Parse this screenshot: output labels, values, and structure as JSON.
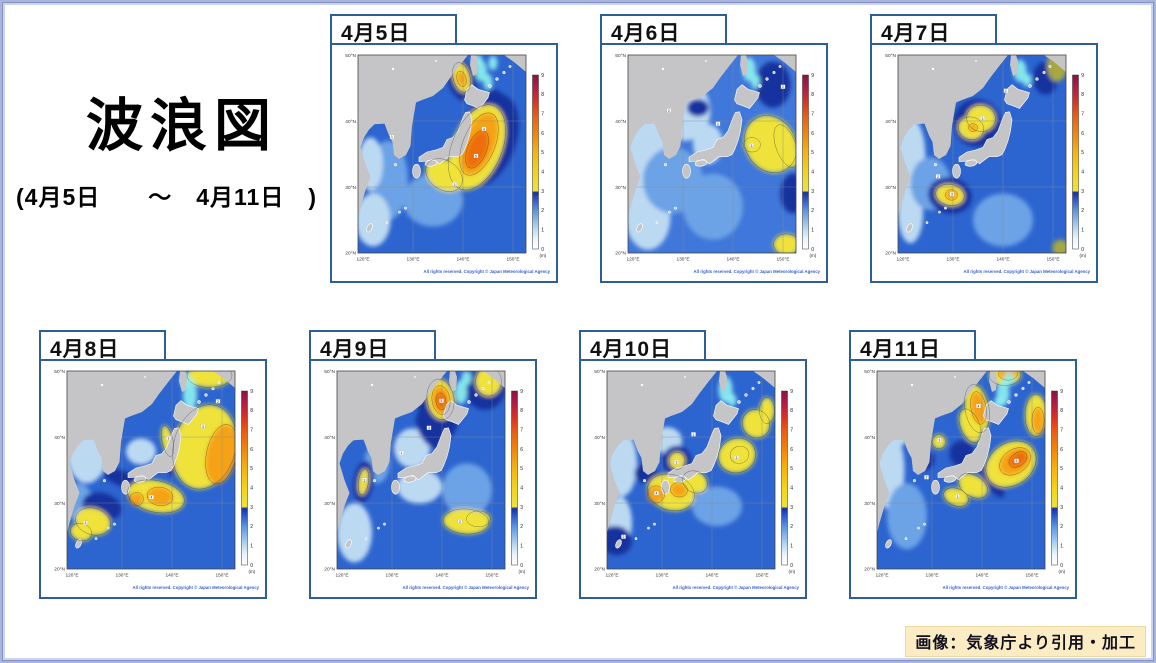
{
  "slide": {
    "title": "波浪図",
    "subtitle": "(4月5日　　～　4月11日　)",
    "attribution": "画像：気象庁より引用・加工"
  },
  "map_common": {
    "lat_labels": [
      "50°N",
      "40°N",
      "30°N",
      "20°N"
    ],
    "lon_labels": [
      "120°E",
      "130°E",
      "140°E",
      "150°E"
    ],
    "colorbar": {
      "ticks": [
        9,
        8,
        7,
        6,
        5,
        4,
        3,
        2,
        1,
        0
      ],
      "unit": "(m)"
    },
    "copyright": "All rights reserved. Copyright © Japan Meteorological Agency",
    "palette": {
      "sea": "#2d65d0",
      "sea_light": "#4077da",
      "land": "#c5c5c7",
      "border": "#2d5e98",
      "p": "#bcd9f2",
      "w": "#eef6fc",
      "m": "#6ca2e6",
      "db": "#16309e",
      "y": "#eee23a",
      "o": "#f6a217",
      "d": "#ee6d0c",
      "r": "#d83028",
      "c": "#8ef2f0",
      "g": "#a8a93c"
    },
    "colorbar_stops": [
      [
        0,
        "#ffffff"
      ],
      [
        6,
        "#eaf4fc"
      ],
      [
        11,
        "#bcdcf2"
      ],
      [
        22,
        "#5b96e0"
      ],
      [
        29,
        "#2a52c8"
      ],
      [
        32.5,
        "#16309e"
      ],
      [
        33.5,
        "#ede23e"
      ],
      [
        44,
        "#f2d41c"
      ],
      [
        55,
        "#f5b50f"
      ],
      [
        66,
        "#f1870c"
      ],
      [
        77,
        "#e85c12"
      ],
      [
        85,
        "#d93025"
      ],
      [
        93,
        "#b01c48"
      ],
      [
        100,
        "#8c1240"
      ]
    ]
  },
  "panels": [
    {
      "date": "4月5日",
      "sea": "#2d65d0",
      "blobs": [
        [
          125,
          31,
          4,
          6,
          0,
          "m"
        ],
        [
          122,
          25,
          3.5,
          4,
          0,
          "p"
        ],
        [
          121.5,
          33.5,
          2.5,
          4,
          0,
          "p"
        ],
        [
          134,
          28,
          6,
          4,
          0,
          "m"
        ],
        [
          144.5,
          37,
          6,
          7.5,
          22,
          "db"
        ],
        [
          146,
          42.8,
          2.4,
          2,
          0,
          "db"
        ],
        [
          142.8,
          36,
          5,
          6.8,
          22,
          "y"
        ],
        [
          136.2,
          31.8,
          4,
          2.2,
          35,
          "y"
        ],
        [
          143.2,
          36.5,
          3.2,
          5,
          22,
          "o"
        ],
        [
          142.8,
          35.7,
          1.9,
          3,
          22,
          "d"
        ],
        [
          139.8,
          46.2,
          2.8,
          3.2,
          -15,
          "db"
        ],
        [
          139.7,
          46.6,
          1.7,
          2.3,
          -15,
          "y"
        ],
        [
          139.7,
          46.4,
          0.9,
          1.2,
          -15,
          "o"
        ],
        [
          143.6,
          47.6,
          1.2,
          1.6,
          0,
          "c"
        ],
        [
          145,
          45.9,
          0.9,
          1.2,
          0,
          "c"
        ],
        [
          142.9,
          49.2,
          1,
          0.9,
          0,
          "c"
        ],
        [
          146,
          48.8,
          0.9,
          1.1,
          0,
          "c"
        ]
      ],
      "contour_labels": [
        [
          144.2,
          38.8,
          "4"
        ],
        [
          142.6,
          34.7,
          "5"
        ],
        [
          138.3,
          30.4,
          "3"
        ],
        [
          125.8,
          37.6,
          "1"
        ]
      ]
    },
    {
      "date": "4月6日",
      "sea": "#4077da",
      "blobs": [
        [
          123.5,
          34,
          5.5,
          8,
          0,
          "p"
        ],
        [
          123,
          25.5,
          4.5,
          5,
          0,
          "p"
        ],
        [
          130.5,
          41.5,
          5,
          4.5,
          0,
          "p"
        ],
        [
          135,
          36.5,
          3,
          3,
          0,
          "p"
        ],
        [
          128,
          31,
          6,
          5,
          0,
          "m"
        ],
        [
          136,
          27,
          6,
          5,
          0,
          "m"
        ],
        [
          133,
          42,
          2.2,
          1.3,
          0,
          "db"
        ],
        [
          148,
          45.5,
          3.5,
          3.5,
          0,
          "db"
        ],
        [
          152,
          29,
          2.5,
          3,
          0,
          "db"
        ],
        [
          147.5,
          36.5,
          5,
          4.5,
          -30,
          "y"
        ],
        [
          143.8,
          36.4,
          1.7,
          1.1,
          0,
          "y"
        ],
        [
          150.6,
          36.2,
          2,
          3.4,
          -20,
          "y"
        ],
        [
          150.7,
          21.3,
          2.6,
          1.6,
          0,
          "y"
        ],
        [
          143.2,
          47.8,
          1.3,
          1.8,
          0,
          "c"
        ],
        [
          144.5,
          46,
          0.9,
          1.1,
          0,
          "c"
        ]
      ],
      "contour_labels": [
        [
          127.2,
          41.6,
          "2"
        ],
        [
          137,
          39.6,
          "1"
        ],
        [
          143.7,
          36.3,
          "3"
        ],
        [
          150,
          45.2,
          "2"
        ]
      ]
    },
    {
      "date": "4月7日",
      "sea": "#2d65d0",
      "blobs": [
        [
          121.5,
          34.5,
          3,
          6,
          0,
          "p"
        ],
        [
          121.5,
          26,
          2.5,
          4.5,
          0,
          "p"
        ],
        [
          125.5,
          30.5,
          4,
          4,
          0,
          "m"
        ],
        [
          140,
          25,
          6,
          4,
          0,
          "m"
        ],
        [
          134.8,
          39.7,
          4.8,
          3.6,
          15,
          "db"
        ],
        [
          148.5,
          46.5,
          2.5,
          2.5,
          0,
          "db"
        ],
        [
          135.6,
          40.4,
          2.9,
          2,
          12,
          "y"
        ],
        [
          133.6,
          38.9,
          2.6,
          1.7,
          18,
          "y"
        ],
        [
          134,
          39,
          0.9,
          0.6,
          0,
          "o"
        ],
        [
          129.4,
          28.7,
          4.4,
          2.7,
          12,
          "db"
        ],
        [
          129.4,
          28.8,
          2.9,
          1.6,
          12,
          "y"
        ],
        [
          129.7,
          28.8,
          1.2,
          0.8,
          0,
          "o"
        ],
        [
          150.8,
          48.3,
          2,
          2.3,
          0,
          "g"
        ],
        [
          151.5,
          20.8,
          1.6,
          1.2,
          0,
          "g"
        ],
        [
          143.4,
          47.6,
          1.3,
          1.7,
          0,
          "c"
        ],
        [
          144.8,
          46.2,
          0.9,
          1,
          0,
          "c"
        ]
      ],
      "contour_labels": [
        [
          135.9,
          40.4,
          "3"
        ],
        [
          129.8,
          28.9,
          "3"
        ],
        [
          127,
          31.6,
          "2"
        ],
        [
          140.6,
          44.6,
          "1"
        ]
      ]
    },
    {
      "date": "4月8日",
      "sea": "#2d65d0",
      "blobs": [
        [
          123,
          37.5,
          4,
          4.5,
          0,
          "p"
        ],
        [
          133.8,
          37.8,
          3,
          2,
          0,
          "p"
        ],
        [
          121.5,
          30,
          2.5,
          3,
          0,
          "m"
        ],
        [
          140.6,
          37.8,
          1.3,
          3.8,
          8,
          "db"
        ],
        [
          130.5,
          33.6,
          4.5,
          1.2,
          18,
          "db"
        ],
        [
          126,
          29.5,
          4,
          2,
          15,
          "db"
        ],
        [
          147.5,
          49.3,
          4.5,
          1.8,
          0,
          "y"
        ],
        [
          146.5,
          38.5,
          6.2,
          6.5,
          15,
          "y"
        ],
        [
          149.9,
          37.4,
          3,
          4.6,
          12,
          "o"
        ],
        [
          136.8,
          31,
          5.8,
          2.4,
          12,
          "y"
        ],
        [
          137.6,
          31,
          2.6,
          1.4,
          8,
          "o"
        ],
        [
          132.9,
          30.6,
          1.4,
          1,
          0,
          "o"
        ],
        [
          139.1,
          39.4,
          1.1,
          2.4,
          -12,
          "y"
        ],
        [
          124.2,
          27.2,
          3.6,
          2,
          18,
          "y"
        ],
        [
          121.8,
          25.6,
          2.2,
          1.3,
          18,
          "y"
        ],
        [
          143.6,
          46.4,
          1.4,
          2.4,
          0,
          "c"
        ],
        [
          142.7,
          48.6,
          1,
          1.2,
          0,
          "c"
        ]
      ],
      "contour_labels": [
        [
          139.3,
          39.8,
          "3"
        ],
        [
          146.2,
          41.6,
          "3"
        ],
        [
          135.9,
          30.9,
          "4"
        ],
        [
          122.7,
          27,
          "3"
        ],
        [
          149.2,
          45.4,
          "2"
        ]
      ]
    },
    {
      "date": "4月9日",
      "sea": "#2d65d0",
      "blobs": [
        [
          134,
          38.3,
          3.6,
          3,
          0,
          "p"
        ],
        [
          135.5,
          32.5,
          4.5,
          2.6,
          0,
          "p"
        ],
        [
          122.5,
          25.5,
          3.5,
          4.5,
          0,
          "p"
        ],
        [
          127,
          36,
          2.5,
          3,
          0,
          "m"
        ],
        [
          145,
          32,
          5,
          4,
          0,
          "m"
        ],
        [
          139.3,
          44.3,
          4,
          5,
          -8,
          "db"
        ],
        [
          137.2,
          41,
          1.8,
          3,
          -28,
          "db"
        ],
        [
          148.6,
          47.3,
          4,
          3.2,
          0,
          "db"
        ],
        [
          139.7,
          45.7,
          2.7,
          3.1,
          -8,
          "y"
        ],
        [
          139.8,
          45.6,
          1.8,
          2.2,
          -8,
          "o"
        ],
        [
          139.8,
          45.4,
          1,
          1.3,
          -8,
          "d"
        ],
        [
          149.3,
          48.4,
          2.6,
          2.2,
          0,
          "y"
        ],
        [
          124.3,
          33.2,
          2,
          3.2,
          8,
          "db"
        ],
        [
          124.3,
          33.2,
          1,
          2,
          8,
          "y"
        ],
        [
          144.8,
          27.2,
          4.6,
          1.9,
          4,
          "y"
        ],
        [
          147.3,
          27.6,
          2.4,
          1.2,
          0,
          "y"
        ],
        [
          143.8,
          46.8,
          1.2,
          1.8,
          0,
          "c"
        ],
        [
          144.9,
          48.9,
          1,
          1.1,
          0,
          "c"
        ]
      ],
      "contour_labels": [
        [
          139.9,
          45.5,
          "5"
        ],
        [
          137.4,
          41.4,
          "3"
        ],
        [
          124.5,
          33.5,
          "3"
        ],
        [
          143.6,
          27.2,
          "2"
        ],
        [
          131.9,
          37.6,
          "1"
        ]
      ]
    },
    {
      "date": "4月10日",
      "sea": "#2d65d0",
      "blobs": [
        [
          122,
          36,
          3,
          5,
          0,
          "p"
        ],
        [
          121.5,
          27,
          2.5,
          4,
          0,
          "p"
        ],
        [
          131,
          39.5,
          3,
          2,
          0,
          "p"
        ],
        [
          141,
          29.5,
          5,
          3,
          0,
          "m"
        ],
        [
          120.8,
          24.3,
          3.2,
          2.2,
          18,
          "db"
        ],
        [
          130.2,
          33.4,
          4.8,
          1.1,
          18,
          "db"
        ],
        [
          126.5,
          34.5,
          2,
          1.5,
          0,
          "db"
        ],
        [
          131.8,
          31.6,
          4.8,
          2.7,
          18,
          "y"
        ],
        [
          128.8,
          31.3,
          1.7,
          1.3,
          0,
          "o"
        ],
        [
          133.4,
          32,
          1.7,
          1.1,
          8,
          "o"
        ],
        [
          136.6,
          33.2,
          2.6,
          1.6,
          28,
          "y"
        ],
        [
          133,
          36.4,
          2.9,
          2.3,
          0,
          "db"
        ],
        [
          133,
          36.4,
          1.6,
          1.3,
          0,
          "y"
        ],
        [
          145,
          37.2,
          3.8,
          2.6,
          -22,
          "y"
        ],
        [
          145.5,
          37.3,
          1.9,
          1.3,
          -22,
          "y"
        ],
        [
          148.8,
          42,
          2.7,
          2.2,
          -32,
          "y"
        ],
        [
          151,
          44,
          1.5,
          2,
          0,
          "y"
        ],
        [
          142.7,
          47.2,
          1.4,
          2,
          0,
          "c"
        ],
        [
          144,
          45.6,
          0.9,
          1,
          0,
          "c"
        ]
      ],
      "contour_labels": [
        [
          132.9,
          36.2,
          "3"
        ],
        [
          128.9,
          31.5,
          "4"
        ],
        [
          144.9,
          36.9,
          "3"
        ],
        [
          122.3,
          24.9,
          "2"
        ],
        [
          136.3,
          40.4,
          "1"
        ]
      ]
    },
    {
      "date": "4月11日",
      "sea": "#2d65d0",
      "blobs": [
        [
          121.5,
          35,
          3,
          6,
          0,
          "p"
        ],
        [
          123,
          41,
          2.5,
          2.5,
          0,
          "p"
        ],
        [
          125,
          28,
          4,
          5,
          0,
          "m"
        ],
        [
          141.8,
          33.8,
          1.6,
          3.4,
          -32,
          "db"
        ],
        [
          136,
          37.5,
          2.5,
          2,
          0,
          "db"
        ],
        [
          128.5,
          36.5,
          2,
          1.5,
          0,
          "db"
        ],
        [
          139,
          44.3,
          2.4,
          3.7,
          -10,
          "y"
        ],
        [
          137.6,
          41.7,
          1.9,
          2.7,
          -22,
          "y"
        ],
        [
          139.3,
          44.4,
          1.5,
          2.5,
          -10,
          "o"
        ],
        [
          131.4,
          39.3,
          1.4,
          1.1,
          0,
          "y"
        ],
        [
          144.6,
          49.4,
          3.2,
          1.6,
          0,
          "y"
        ],
        [
          145.2,
          49.6,
          1.9,
          1,
          0,
          "o"
        ],
        [
          150.8,
          43.3,
          2.2,
          3.2,
          0,
          "y"
        ],
        [
          151.2,
          42.5,
          1.2,
          2,
          0,
          "o"
        ],
        [
          145.8,
          35.9,
          5.4,
          3.2,
          -35,
          "y"
        ],
        [
          146.6,
          36.3,
          3.4,
          1.8,
          -35,
          "o"
        ],
        [
          147.2,
          36.6,
          2,
          1,
          -35,
          "d"
        ],
        [
          138.2,
          32.6,
          3.2,
          1.6,
          32,
          "y"
        ],
        [
          134.8,
          30.9,
          2.6,
          1.3,
          22,
          "y"
        ],
        [
          144.2,
          46.6,
          1.3,
          1.9,
          0,
          "c"
        ],
        [
          145.4,
          48.8,
          1,
          1.1,
          0,
          "c"
        ],
        [
          143.2,
          45.2,
          0.8,
          0.9,
          0,
          "c"
        ]
      ],
      "contour_labels": [
        [
          139.3,
          44.7,
          "4"
        ],
        [
          131.5,
          39.5,
          "3"
        ],
        [
          146.9,
          36.4,
          "5"
        ],
        [
          135.1,
          31,
          "3"
        ],
        [
          128.9,
          33.9,
          "2"
        ]
      ]
    }
  ]
}
